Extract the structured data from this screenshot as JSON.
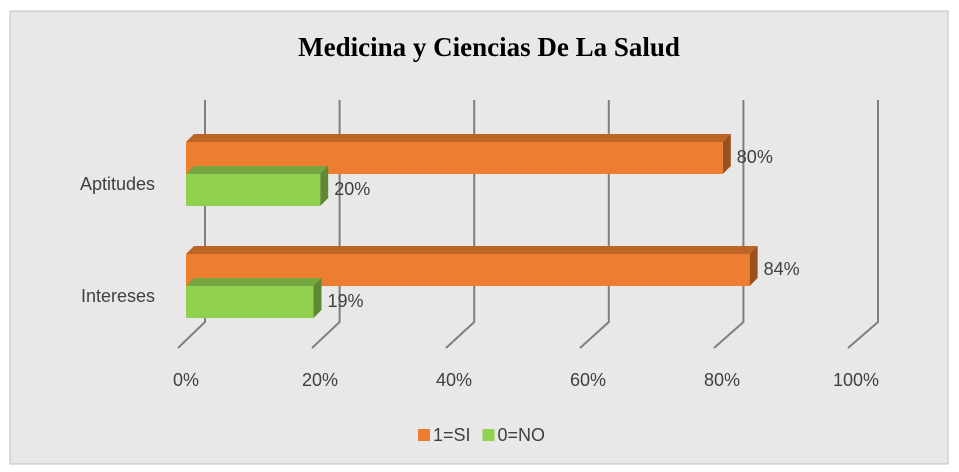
{
  "chart_data": {
    "type": "bar3d",
    "orientation": "horizontal",
    "title": "Medicina y Ciencias De La Salud",
    "categories": [
      "Aptitudes",
      "Intereses"
    ],
    "series": [
      {
        "name": "1=SI",
        "color": "#ED7D31",
        "values": [
          80,
          84
        ],
        "value_labels": [
          "80%",
          "84%"
        ]
      },
      {
        "name": "0=NO",
        "color": "#92D050",
        "values": [
          20,
          19
        ],
        "value_labels": [
          "20%",
          "19%"
        ]
      }
    ],
    "xlim": [
      0,
      100
    ],
    "xticks": [
      {
        "value": 0,
        "label": "0%"
      },
      {
        "value": 20,
        "label": "20%"
      },
      {
        "value": 40,
        "label": "40%"
      },
      {
        "value": 60,
        "label": "60%"
      },
      {
        "value": 80,
        "label": "80%"
      },
      {
        "value": 100,
        "label": "100%"
      }
    ],
    "grid": true,
    "legend": "bottom"
  }
}
